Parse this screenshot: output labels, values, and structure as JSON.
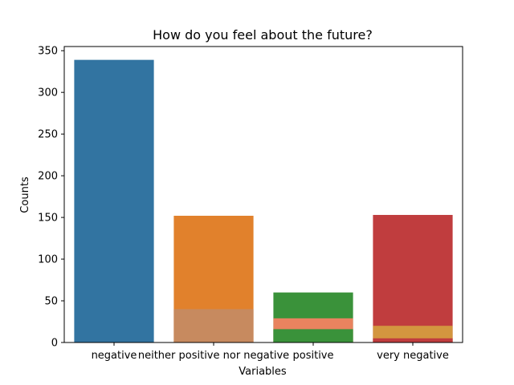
{
  "chart_data": {
    "type": "bar",
    "title": "How do you feel about the future?",
    "xlabel": "Variables",
    "ylabel": "Counts",
    "ylim": [
      0,
      355
    ],
    "yticks": [
      0,
      50,
      100,
      150,
      200,
      250,
      300,
      350
    ],
    "categories": [
      "negative",
      "neither positive nor negative",
      "positive",
      "very negative"
    ],
    "bars": [
      {
        "category": "negative",
        "value": 339,
        "color": "#3274a1"
      },
      {
        "category": "neither positive nor negative",
        "value": 152,
        "color": "#e1812c"
      },
      {
        "category": "positive",
        "value": 60,
        "color": "#3a923a"
      },
      {
        "category": "very negative",
        "value": 153,
        "color": "#c03d3e"
      }
    ],
    "overlay_bars": [
      {
        "category": "neither positive nor negative",
        "value": 40,
        "color": "#c78a5f"
      },
      {
        "category": "positive",
        "value": 29,
        "color": "#e9835f"
      },
      {
        "category": "positive",
        "value": 16,
        "color": "#3a923a"
      },
      {
        "category": "very negative",
        "value": 20,
        "color": "#d3963f"
      },
      {
        "category": "very negative",
        "value": 5,
        "color": "#c03d3e"
      }
    ],
    "grid": false,
    "legend": "none"
  }
}
